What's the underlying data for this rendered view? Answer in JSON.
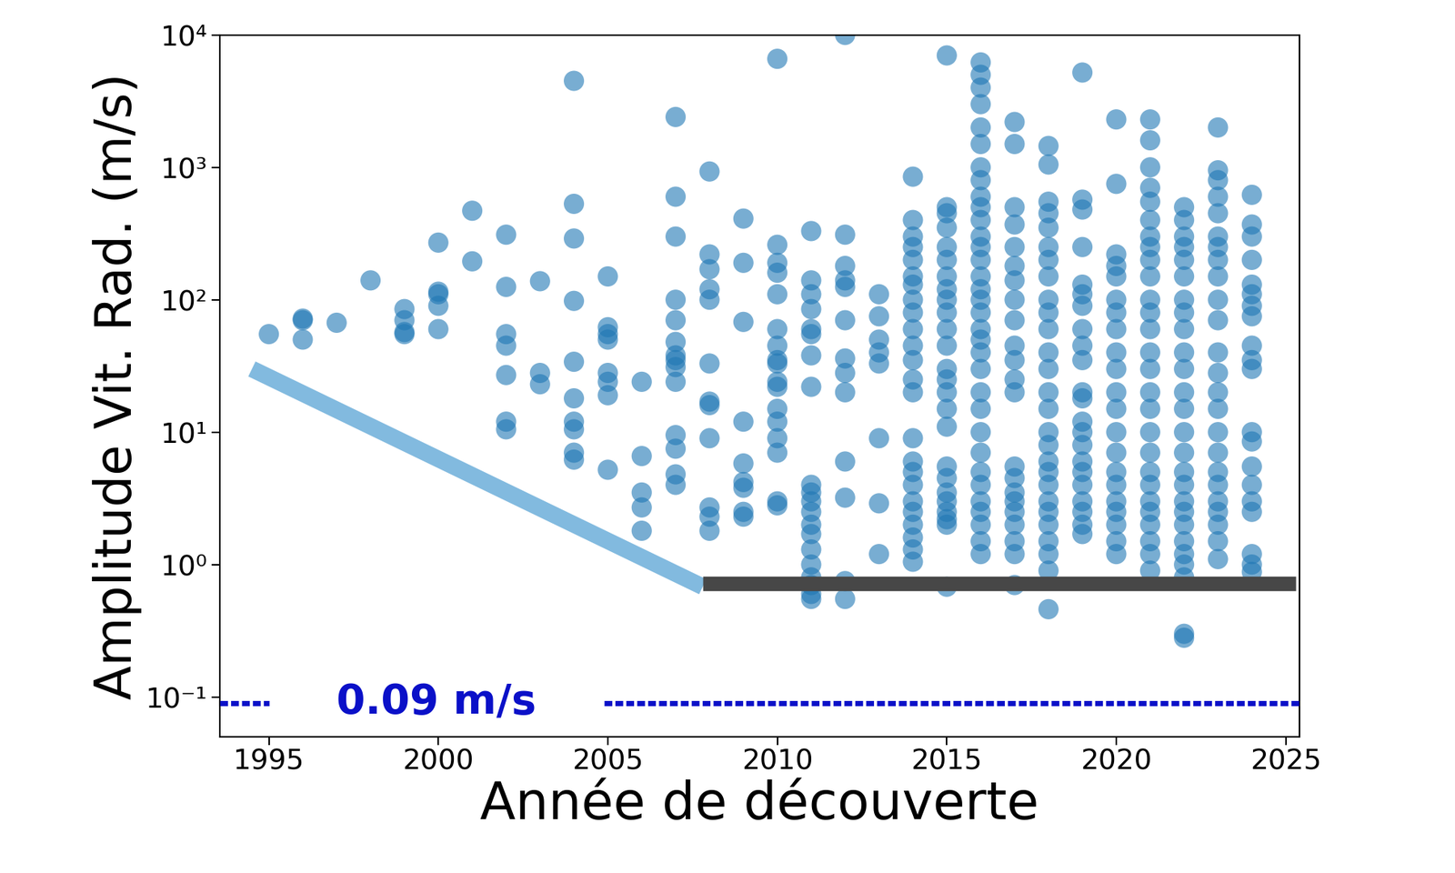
{
  "chart_data": {
    "type": "scatter",
    "xlabel": "Année de découverte",
    "ylabel": "Amplitude Vit. Rad. (m/s)",
    "log": "y",
    "color": "#1f77b4",
    "xlim": [
      1993.55,
      2025.4
    ],
    "ylim": [
      0.05,
      10000
    ],
    "xticks": [
      1995,
      2000,
      2005,
      2010,
      2015,
      2020,
      2025
    ],
    "yticks": [
      {
        "value": 0.1,
        "label": "10⁻¹"
      },
      {
        "value": 1,
        "label": "10⁰"
      },
      {
        "value": 10,
        "label": "10¹"
      },
      {
        "value": 100,
        "label": "10²"
      },
      {
        "value": 1000,
        "label": "10³"
      },
      {
        "value": 10000,
        "label": "10⁴"
      }
    ],
    "x": [
      1995,
      1996,
      1997,
      1998,
      1999,
      2000,
      2001,
      2002,
      2003,
      2004,
      2005,
      2006,
      2007,
      2008,
      2009,
      2010,
      2011,
      2012,
      2013,
      2014,
      2015,
      2016,
      2017,
      2018,
      2019,
      2020,
      2021,
      2022,
      2023,
      2024
    ],
    "values": [
      [
        55
      ],
      [
        70,
        50,
        72
      ],
      [
        67
      ],
      [
        140
      ],
      [
        85,
        55,
        70,
        57
      ],
      [
        270,
        110,
        90,
        60,
        115
      ],
      [
        470,
        195
      ],
      [
        310,
        125,
        55,
        45,
        27,
        12,
        10.5
      ],
      [
        138,
        28,
        23
      ],
      [
        4500,
        530,
        290,
        98,
        34,
        18,
        12,
        10.5,
        7,
        6.2
      ],
      [
        150,
        62,
        50,
        55,
        28,
        24,
        19,
        5.2
      ],
      [
        24,
        6.6,
        3.5,
        2.7,
        1.8
      ],
      [
        2400,
        600,
        300,
        100,
        70,
        48,
        38,
        35,
        31,
        24,
        9.5,
        7.5,
        4.8,
        4
      ],
      [
        930,
        220,
        170,
        120,
        100,
        33,
        17,
        16,
        9,
        2.7,
        2.3,
        1.8
      ],
      [
        410,
        190,
        68,
        12,
        5.8,
        4.2,
        3.8,
        2.5,
        2.3
      ],
      [
        6600,
        260,
        190,
        160,
        110,
        60,
        45,
        35,
        33,
        24,
        22,
        15,
        12,
        9,
        7,
        3,
        2.8
      ],
      [
        330,
        140,
        110,
        85,
        60,
        55,
        38,
        22,
        4,
        3.5,
        3,
        2.5,
        2,
        1.7,
        1.3,
        1,
        0.8,
        0.7,
        0.6,
        0.55
      ],
      [
        10000,
        310,
        180,
        140,
        125,
        70,
        36,
        28,
        20,
        6,
        3.2,
        0.75,
        0.55
      ],
      [
        110,
        75,
        50,
        40,
        33,
        9,
        2.9,
        1.2
      ],
      [
        850,
        400,
        300,
        250,
        200,
        150,
        130,
        100,
        80,
        60,
        45,
        35,
        25,
        20,
        9,
        6,
        5,
        4,
        3,
        2.5,
        2,
        1.6,
        1.3,
        1.05
      ],
      [
        7000,
        500,
        450,
        350,
        250,
        200,
        150,
        120,
        100,
        80,
        60,
        45,
        30,
        25,
        20,
        15,
        11,
        5.5,
        4.5,
        3.5,
        3,
        2.5,
        2.2,
        2,
        0.68
      ],
      [
        6200,
        5000,
        4000,
        3000,
        2000,
        1500,
        1000,
        800,
        600,
        500,
        400,
        300,
        250,
        200,
        150,
        120,
        100,
        80,
        60,
        50,
        40,
        30,
        20,
        15,
        10,
        7,
        5,
        4,
        3,
        2.5,
        2,
        1.5,
        1.2
      ],
      [
        2200,
        1500,
        500,
        370,
        250,
        180,
        140,
        100,
        70,
        45,
        35,
        25,
        20,
        5.5,
        4.5,
        3.5,
        3,
        2.5,
        2,
        1.5,
        1.2,
        0.7
      ],
      [
        1450,
        1050,
        550,
        450,
        350,
        250,
        200,
        150,
        100,
        80,
        60,
        40,
        30,
        20,
        15,
        10,
        8,
        6,
        5,
        4,
        3,
        2.5,
        2,
        1.5,
        1.2,
        0.9,
        0.46
      ],
      [
        5200,
        570,
        480,
        250,
        130,
        110,
        90,
        60,
        45,
        35,
        20,
        18,
        12,
        10,
        8,
        6,
        5,
        4,
        3,
        2.5,
        2,
        1.7
      ],
      [
        2300,
        750,
        220,
        180,
        150,
        100,
        80,
        60,
        40,
        30,
        20,
        15,
        10,
        7,
        5,
        4,
        3,
        2.5,
        2,
        1.5,
        1.2
      ],
      [
        2300,
        1600,
        1000,
        700,
        550,
        400,
        300,
        250,
        200,
        150,
        100,
        80,
        60,
        40,
        30,
        20,
        15,
        10,
        7,
        5,
        4,
        3,
        2.5,
        2,
        1.5,
        1.2,
        0.9
      ],
      [
        500,
        400,
        300,
        250,
        200,
        150,
        100,
        80,
        60,
        40,
        30,
        20,
        15,
        10,
        7,
        5,
        4,
        3,
        2.5,
        2,
        1.5,
        1.2,
        1,
        0.8,
        0.3,
        0.28
      ],
      [
        2000,
        950,
        800,
        600,
        450,
        300,
        250,
        200,
        150,
        100,
        70,
        40,
        28,
        20,
        15,
        10,
        7,
        5,
        4,
        3,
        2.5,
        2,
        1.5,
        1.1
      ],
      [
        620,
        370,
        300,
        200,
        130,
        110,
        90,
        75,
        45,
        35,
        30,
        10,
        8.5,
        5.5,
        4,
        3,
        2.5,
        1.2,
        1,
        0.88
      ]
    ],
    "lines": [
      {
        "type": "line",
        "x": [
          1994.5,
          2007.8
        ],
        "values": [
          30,
          0.68
        ],
        "color": "#82badf",
        "line_style": "solid"
      },
      {
        "type": "line",
        "x": [
          2007.8,
          2025.3
        ],
        "values": [
          0.72,
          0.72
        ],
        "color": "#474747",
        "line_style": "solid"
      }
    ],
    "reference": {
      "label": "0.09 m/s",
      "value": 0.09,
      "color": "#0a10c8",
      "line_style": "dashed",
      "segments": [
        [
          1993.55,
          1995.0
        ],
        [
          2004.9,
          2025.4
        ]
      ]
    }
  }
}
